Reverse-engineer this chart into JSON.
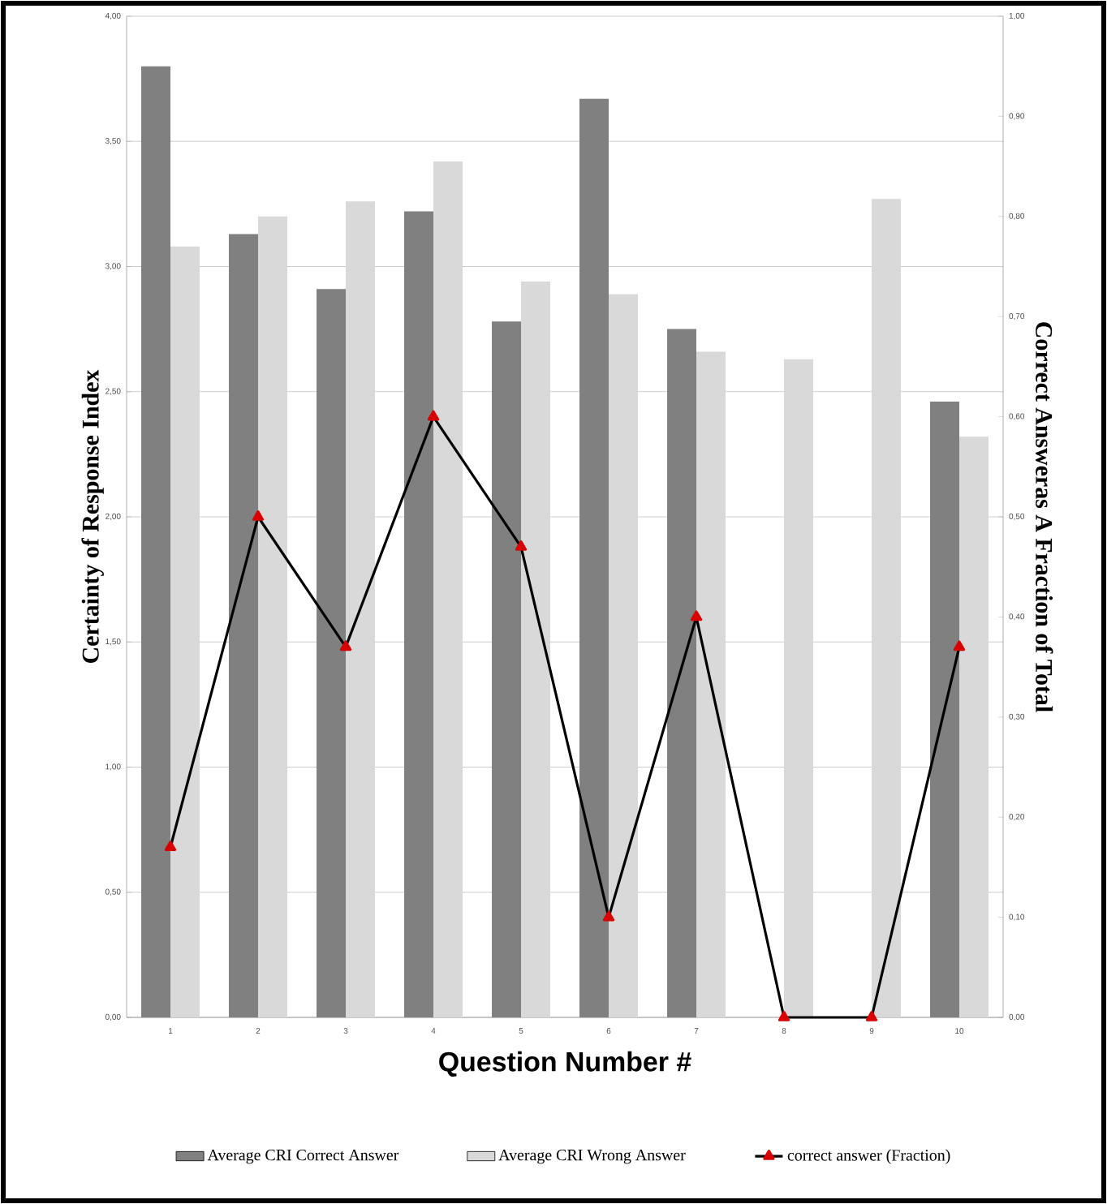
{
  "chart_data": {
    "type": "bar",
    "xlabel": "Question Number #",
    "ylabel": "Certainty of Response Index",
    "y2label": "Correct Answeras A Fraction of Total",
    "categories": [
      "1",
      "2",
      "3",
      "4",
      "5",
      "6",
      "7",
      "8",
      "9",
      "10"
    ],
    "series": [
      {
        "name": "Average CRI Correct Answer",
        "color": "#808080",
        "values": [
          3.8,
          3.13,
          2.91,
          3.22,
          2.78,
          3.67,
          2.75,
          null,
          null,
          2.46
        ]
      },
      {
        "name": "Average CRI Wrong Answer",
        "color": "#d9d9d9",
        "values": [
          3.08,
          3.2,
          3.26,
          3.42,
          2.94,
          2.89,
          2.66,
          2.63,
          3.27,
          2.32
        ]
      },
      {
        "name": "correct answer (Fraction)",
        "type": "line",
        "axis": "y2",
        "color": "#000000",
        "marker": "triangle",
        "values": [
          0.17,
          0.5,
          0.37,
          0.6,
          0.47,
          0.1,
          0.4,
          0.0,
          0.0,
          0.37
        ]
      }
    ],
    "ylim": [
      0,
      4
    ],
    "yticks": [
      {
        "value": 0,
        "label": "0,00"
      },
      {
        "value": 0.5,
        "label": "0,50"
      },
      {
        "value": 1,
        "label": "1,00"
      },
      {
        "value": 1.5,
        "label": "1,50"
      },
      {
        "value": 2,
        "label": "2,00"
      },
      {
        "value": 2.5,
        "label": "2,50"
      },
      {
        "value": 3,
        "label": "3,00"
      },
      {
        "value": 3.5,
        "label": "3,50"
      },
      {
        "value": 4,
        "label": "4,00"
      }
    ],
    "y2lim": [
      0,
      1
    ],
    "y2ticks": [
      {
        "value": 0,
        "label": "0,00"
      },
      {
        "value": 0.1,
        "label": "0,10"
      },
      {
        "value": 0.2,
        "label": "0,20"
      },
      {
        "value": 0.3,
        "label": "0,30"
      },
      {
        "value": 0.4,
        "label": "0,40"
      },
      {
        "value": 0.5,
        "label": "0,50"
      },
      {
        "value": 0.6,
        "label": "0,60"
      },
      {
        "value": 0.7,
        "label": "0,70"
      },
      {
        "value": 0.8,
        "label": "0,80"
      },
      {
        "value": 0.9,
        "label": "0,90"
      },
      {
        "value": 1,
        "label": "1,00"
      }
    ],
    "grid": "y",
    "legend": "bottom"
  }
}
